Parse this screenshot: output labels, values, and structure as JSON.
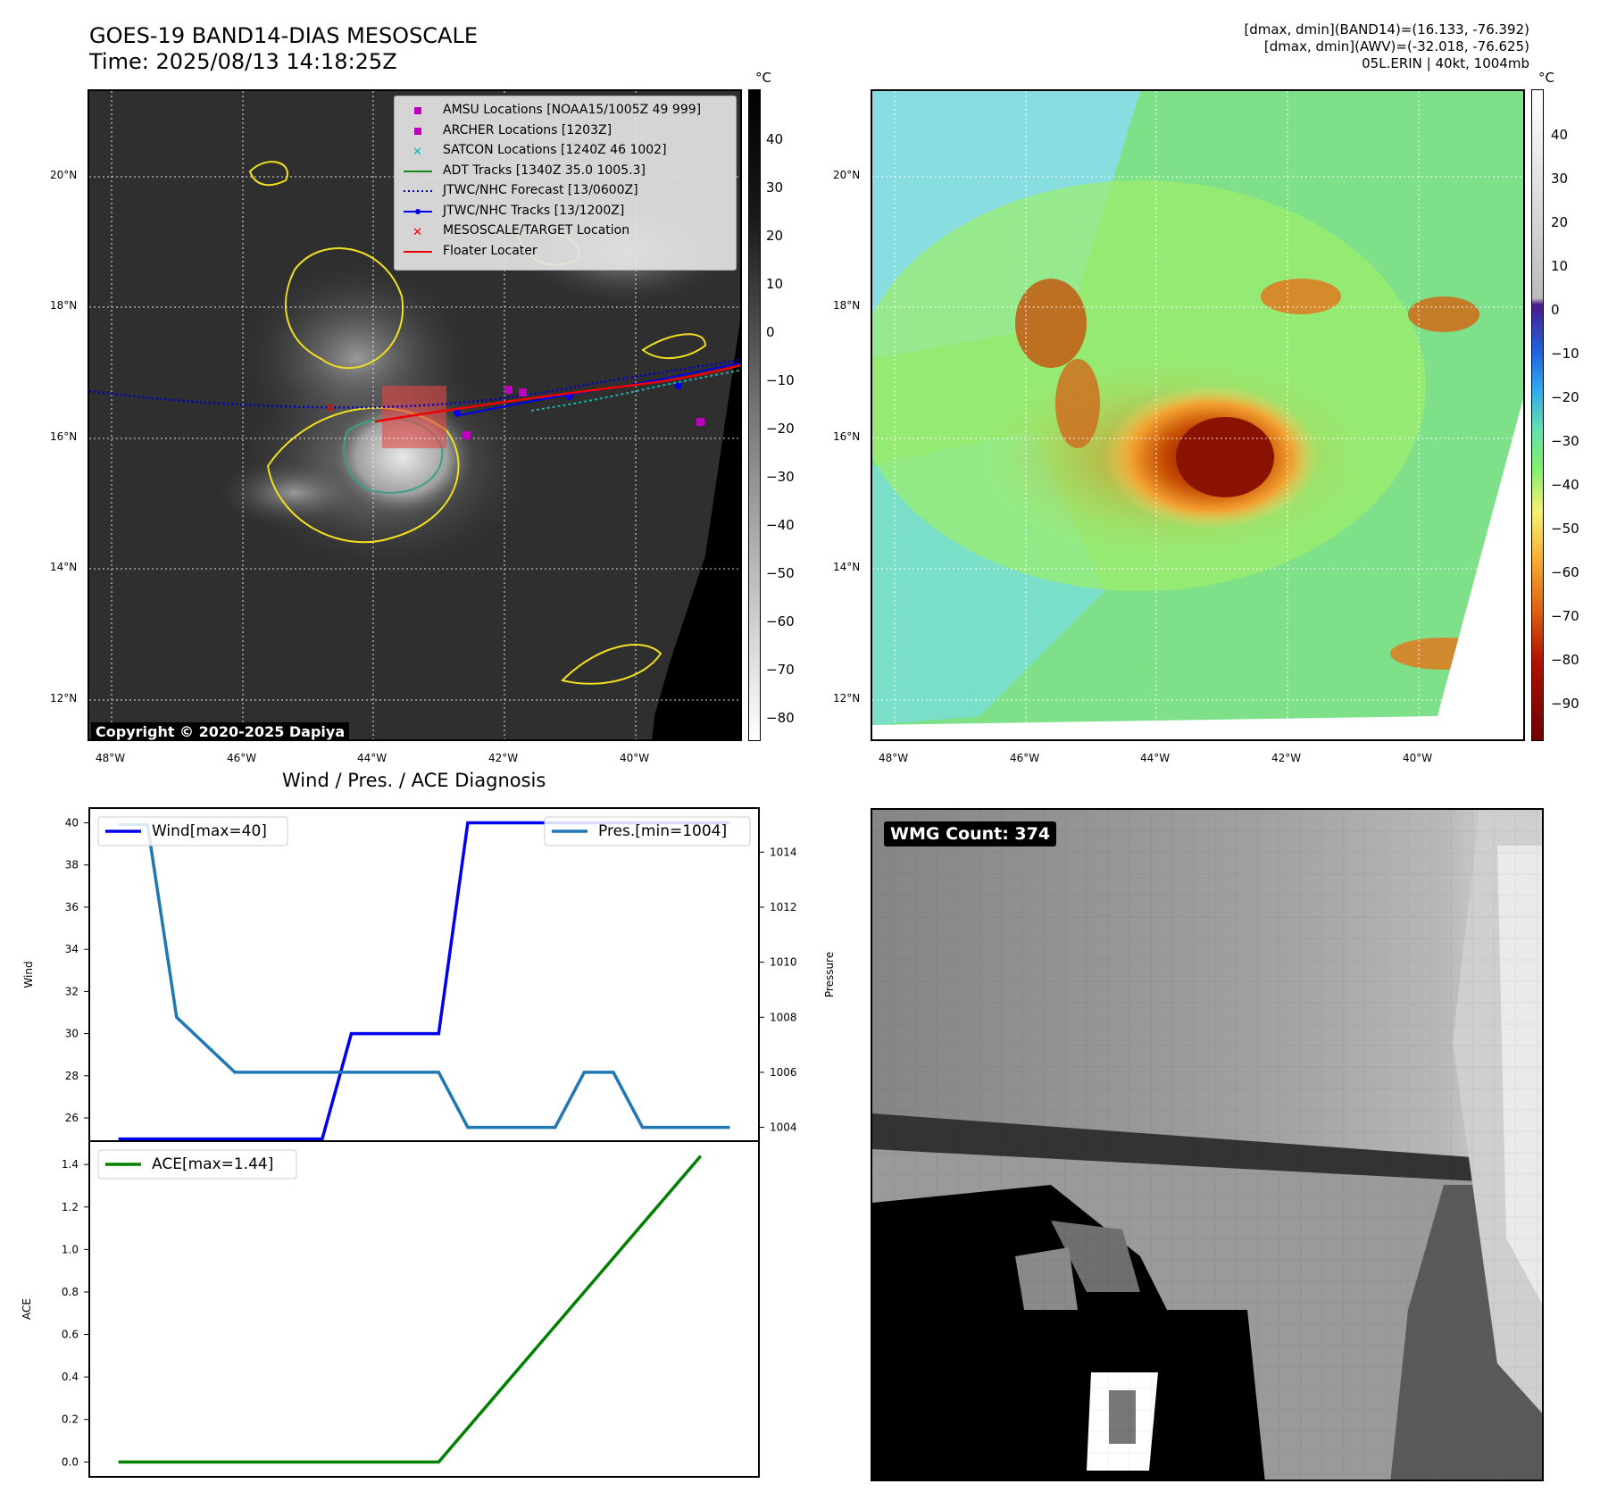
{
  "header": {
    "title_line1": "GOES-19 BAND14-DIAS MESOSCALE",
    "title_line2": "Time: 2025/08/13 14:18:25Z",
    "info_line1": "[dmax, dmin](BAND14)=(16.133, -76.392)",
    "info_line2": "[dmax, dmin](AWV)=(-32.018, -76.625)",
    "info_line3": "05L.ERIN | 40kt, 1004mb"
  },
  "map_axes": {
    "lat_labels": [
      "20°N",
      "18°N",
      "16°N",
      "14°N",
      "12°N"
    ],
    "lon_labels": [
      "48°W",
      "46°W",
      "44°W",
      "42°W",
      "40°W"
    ]
  },
  "legend": {
    "items": [
      {
        "label": "AMSU Locations [NOAA15/1005Z 49 999]",
        "marker": "square",
        "color": "#bf00bf"
      },
      {
        "label": "ARCHER Locations [1203Z]",
        "marker": "square",
        "color": "#bf00bf"
      },
      {
        "label": "SATCON Locations [1240Z 46 1002]",
        "marker": "x",
        "color": "#1ab0b0"
      },
      {
        "label": "ADT Tracks [1340Z 35.0 1005.3]",
        "marker": "line",
        "color": "#118811"
      },
      {
        "label": "JTWC/NHC Forecast [13/0600Z]",
        "marker": "dotted",
        "color": "#0000cc"
      },
      {
        "label": "JTWC/NHC Tracks [13/1200Z]",
        "marker": "line-dot",
        "color": "#0000ee"
      },
      {
        "label": "MESOSCALE/TARGET Location",
        "marker": "x",
        "color": "#ee0000"
      },
      {
        "label": "Floater Locater",
        "marker": "line",
        "color": "#ee0000"
      }
    ]
  },
  "colorbar1": {
    "unit": "°C",
    "ticks": [
      "40",
      "30",
      "20",
      "10",
      "0",
      "−10",
      "−20",
      "−30",
      "−40",
      "−50",
      "−60",
      "−70",
      "−80"
    ]
  },
  "colorbar2": {
    "unit": "°C",
    "ticks": [
      "40",
      "30",
      "20",
      "10",
      "0",
      "−10",
      "−20",
      "−30",
      "−40",
      "−50",
      "−60",
      "−70",
      "−80",
      "−90"
    ]
  },
  "copyright": "Copyright © 2020-2025 Dapiya",
  "wmg_label": "WMG Count: 374",
  "colors": {
    "wind": "#0000ee",
    "pressure": "#1f77b4",
    "ace": "#008000"
  },
  "chart_data": [
    {
      "type": "line",
      "title": "Wind / Pres. / ACE Diagnosis",
      "x": [
        0,
        1,
        2,
        3,
        4,
        5,
        6,
        7,
        8,
        9,
        10,
        11,
        12,
        13,
        14,
        15,
        16,
        17,
        18,
        19,
        20,
        21
      ],
      "ylabel": "Wind",
      "y2label": "Pressure",
      "ylim": [
        24.9,
        40.7
      ],
      "y2lim": [
        1003.5,
        1015.6
      ],
      "y_ticks": [
        "40",
        "38",
        "36",
        "34",
        "32",
        "30",
        "28",
        "26"
      ],
      "y2_ticks": [
        "1014",
        "1012",
        "1010",
        "1008",
        "1006",
        "1004"
      ],
      "series": [
        {
          "name": "Wind[max=40]",
          "axis": "left",
          "values": [
            25,
            25,
            25,
            25,
            25,
            25,
            25,
            25,
            30,
            30,
            30,
            30,
            40,
            40,
            40,
            40,
            40,
            40,
            40,
            40,
            40,
            40
          ]
        },
        {
          "name": "Pres.[min=1004]",
          "axis": "right",
          "values": [
            1015,
            1015,
            1008,
            1007,
            1006,
            1006,
            1006,
            1006,
            1006,
            1006,
            1006,
            1006,
            1004,
            1004,
            1004,
            1004,
            1006,
            1006,
            1004,
            1004,
            1004,
            1004
          ]
        }
      ]
    },
    {
      "type": "line",
      "x": [
        0,
        1,
        2,
        3,
        4,
        5,
        6,
        7,
        8,
        9,
        10,
        11,
        12,
        13,
        14,
        15,
        16,
        17,
        18,
        19,
        20,
        21
      ],
      "ylabel": "ACE",
      "ylim": [
        -0.07,
        1.51
      ],
      "y_ticks": [
        "1.4",
        "1.2",
        "1.0",
        "0.8",
        "0.6",
        "0.4",
        "0.2",
        "0.0"
      ],
      "series": [
        {
          "name": "ACE[max=1.44]",
          "values": [
            0,
            0,
            0,
            0,
            0,
            0,
            0,
            0,
            0,
            0,
            0,
            0,
            0.16,
            0.32,
            0.48,
            0.64,
            0.8,
            0.96,
            1.12,
            1.28,
            1.44,
            1.44
          ]
        }
      ]
    }
  ]
}
